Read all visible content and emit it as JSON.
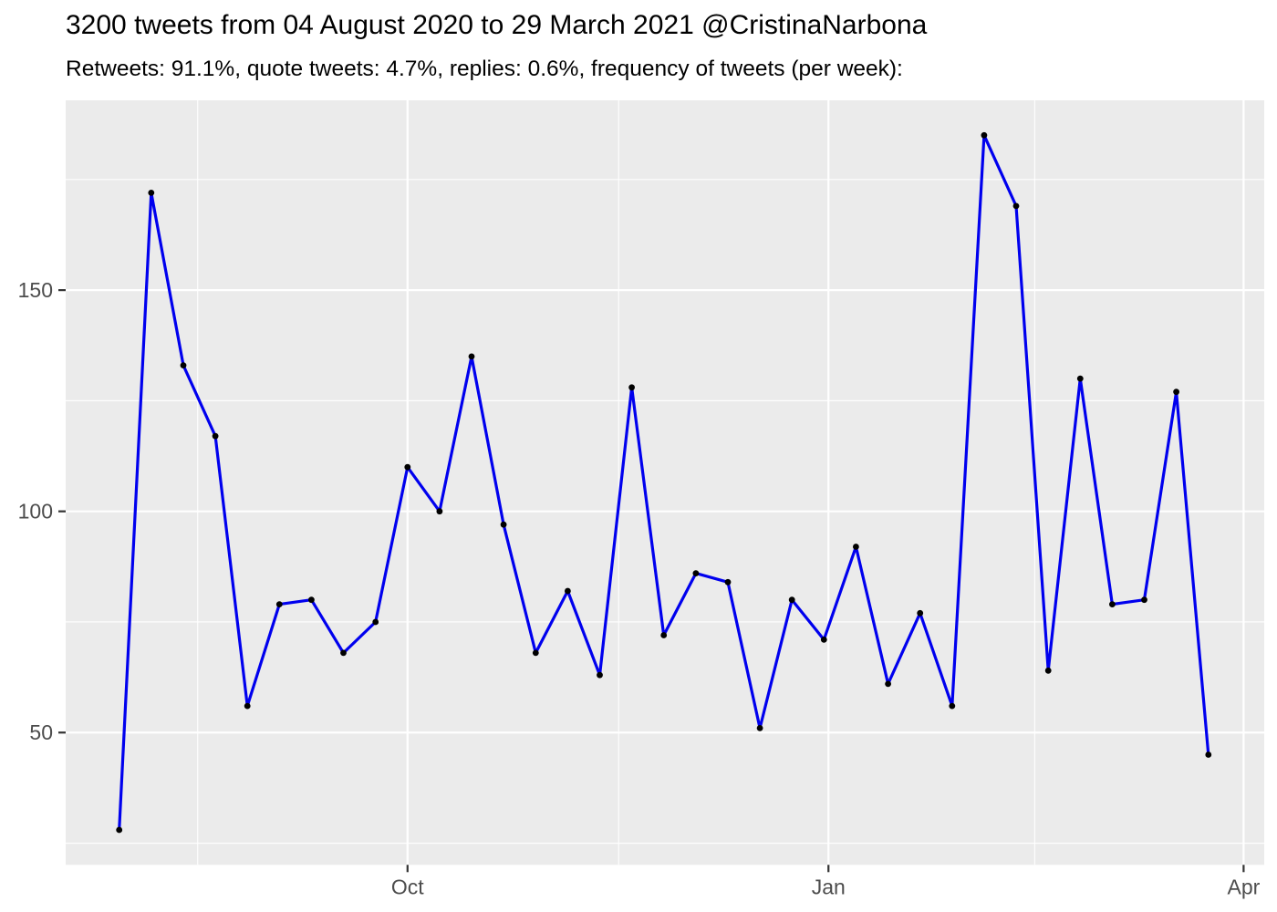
{
  "header": {
    "title": "3200 tweets from 04 August 2020 to 29 March 2021 @CristinaNarbona",
    "subtitle": "Retweets: 91.1%, quote tweets: 4.7%, replies: 0.6%, frequency of tweets (per week):"
  },
  "stats": {
    "total_tweets": 3200,
    "retweets_pct": "91.1%",
    "quote_tweets_pct": "4.7%",
    "replies_pct": "0.6%",
    "account": "@CristinaNarbona",
    "date_from": "04 August 2020",
    "date_to": "29 March 2021"
  },
  "chart_data": {
    "type": "line",
    "title": "3200 tweets from 04 August 2020 to 29 March 2021 @CristinaNarbona",
    "subtitle": "Retweets: 91.1%, quote tweets: 4.7%, replies: 0.6%, frequency of tweets (per week):",
    "xlabel": "",
    "ylabel": "",
    "x": [
      "2020-08-03",
      "2020-08-10",
      "2020-08-17",
      "2020-08-24",
      "2020-08-31",
      "2020-09-07",
      "2020-09-14",
      "2020-09-21",
      "2020-09-28",
      "2020-10-05",
      "2020-10-12",
      "2020-10-19",
      "2020-10-26",
      "2020-11-02",
      "2020-11-09",
      "2020-11-16",
      "2020-11-23",
      "2020-11-30",
      "2020-12-07",
      "2020-12-14",
      "2020-12-21",
      "2020-12-28",
      "2021-01-04",
      "2021-01-11",
      "2021-01-18",
      "2021-01-25",
      "2021-02-01",
      "2021-02-08",
      "2021-02-15",
      "2021-02-22",
      "2021-03-01",
      "2021-03-08",
      "2021-03-15",
      "2021-03-22",
      "2021-03-29"
    ],
    "values": [
      28,
      172,
      133,
      117,
      56,
      79,
      80,
      68,
      75,
      110,
      100,
      135,
      97,
      68,
      82,
      63,
      128,
      72,
      86,
      84,
      51,
      80,
      71,
      92,
      61,
      77,
      56,
      185,
      169,
      64,
      130,
      79,
      80,
      127,
      45
    ],
    "x_ticks": [
      {
        "label": "Oct",
        "week": 9.0
      },
      {
        "label": "Jan",
        "week": 22.14
      },
      {
        "label": "Apr",
        "week": 35.1
      }
    ],
    "x_minor_weeks": [
      2.45,
      15.59,
      28.58
    ],
    "y_ticks": [
      50,
      100,
      150
    ],
    "y_minor": [
      25,
      75,
      125,
      175
    ],
    "ylim": [
      20.1,
      192.9
    ],
    "xlim_weeks": [
      -1.672,
      35.744
    ],
    "grid": true,
    "legend_position": "none",
    "line_color": "#0000EE",
    "point_color": "#000000",
    "panel_bg": "#EBEBEB",
    "grid_color": "#FFFFFF",
    "tick_text_color": "#4D4D4D",
    "tick_mark_color": "#333333"
  }
}
